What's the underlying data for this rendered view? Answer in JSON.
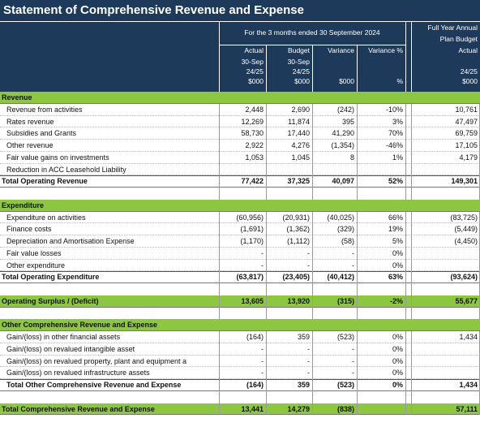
{
  "title": "Statement of Comprehensive Revenue and Expense",
  "header": {
    "period": "For the 3 months ended 30 September 2024",
    "columns": [
      {
        "name": "Actual",
        "date": "30-Sep",
        "year": "24/25",
        "unit": "$000"
      },
      {
        "name": "Budget",
        "date": "30-Sep",
        "year": "24/25",
        "unit": "$000"
      },
      {
        "name": "Variance",
        "unit": "$000"
      },
      {
        "name": "Variance %",
        "unit": "%"
      },
      {
        "group": [
          "Full Year Annual",
          "Plan Budget"
        ],
        "name": "Actual",
        "year": "24/25",
        "unit": "$000"
      }
    ]
  },
  "revenue": {
    "heading": "Revenue",
    "rows": [
      [
        "Revenue from activities",
        "2,448",
        "2,690",
        "(242)",
        "-10%",
        "10,761"
      ],
      [
        "Rates revenue",
        "12,269",
        "11,874",
        "395",
        "3%",
        "47,497"
      ],
      [
        "Subsidies and Grants",
        "58,730",
        "17,440",
        "41,290",
        "70%",
        "69,759"
      ],
      [
        "Other revenue",
        "2,922",
        "4,276",
        "(1,354)",
        "-46%",
        "17,105"
      ],
      [
        "Fair value gains on investments",
        "1,053",
        "1,045",
        "8",
        "1%",
        "4,179"
      ],
      [
        "Reduction in ACC Leasehold Liability",
        null,
        null,
        null,
        null,
        null
      ]
    ],
    "total": [
      "Total Operating Revenue",
      "77,422",
      "37,325",
      "40,097",
      "52%",
      "149,301"
    ]
  },
  "expenditure": {
    "heading": "Expenditure",
    "rows": [
      [
        "Expenditure on activities",
        "(60,956)",
        "(20,931)",
        "(40,025)",
        "66%",
        "(83,725)"
      ],
      [
        "Finance costs",
        "(1,691)",
        "(1,362)",
        "(329)",
        "19%",
        "(5,449)"
      ],
      [
        "Depreciation and Amortisation Expense",
        "(1,170)",
        "(1,112)",
        "(58)",
        "5%",
        "(4,450)"
      ],
      [
        "Fair value losses",
        "-",
        "-",
        "-",
        "0%",
        null
      ],
      [
        "Other expenditure",
        "-",
        "-",
        "-",
        "0%",
        null
      ]
    ],
    "total": [
      "Total Operating Expenditure",
      "(63,817)",
      "(23,405)",
      "(40,412)",
      "63%",
      "(93,624)"
    ]
  },
  "operating_surplus": [
    "Operating Surplus / (Deficit)",
    "13,605",
    "13,920",
    "(315)",
    "-2%",
    "55,677"
  ],
  "other_comprehensive": {
    "heading": "Other Comprehensive Revenue and Expense",
    "rows": [
      [
        "Gain/(loss) in other financial assets",
        "(164)",
        "359",
        "(523)",
        "0%",
        "1,434"
      ],
      [
        "Gain/(loss) on revalued intangible asset",
        "-",
        "-",
        "-",
        "0%",
        null
      ],
      [
        "Gain/(loss) on revalued property, plant and equipment a",
        "-",
        "-",
        "-",
        "0%",
        null
      ],
      [
        "Gain/(loss) on revalued infrastructure assets",
        "-",
        "-",
        "-",
        "0%",
        null
      ]
    ],
    "total": [
      "Total Other Comprehensive Revenue and Expense",
      "(164)",
      "359",
      "(523)",
      "0%",
      "1,434"
    ]
  },
  "total_comprehensive": [
    "Total Comprehensive Revenue and Expense",
    "13,441",
    "14,279",
    "(838)",
    null,
    "57,111"
  ]
}
